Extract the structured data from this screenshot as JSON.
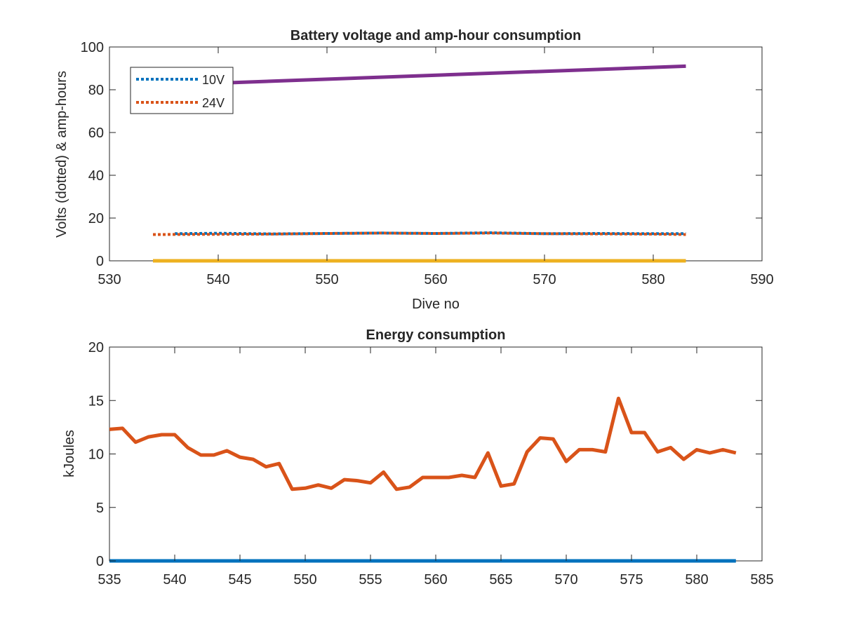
{
  "chart_data": [
    {
      "type": "line",
      "title": "Battery voltage and amp-hour consumption",
      "xlabel": "Dive no",
      "ylabel": "Volts (dotted) & amp-hours",
      "xlim": [
        530,
        590
      ],
      "ylim": [
        0,
        100
      ],
      "xticks": [
        530,
        540,
        550,
        560,
        570,
        580,
        590
      ],
      "yticks": [
        0,
        20,
        40,
        60,
        80,
        100
      ],
      "grid": false,
      "legend_position": "top-left",
      "series": [
        {
          "name": "10V",
          "style": "dotted",
          "color": "#0072BD",
          "x": [
            536,
            540,
            545,
            550,
            555,
            560,
            565,
            570,
            575,
            580,
            583
          ],
          "y": [
            12.7,
            12.9,
            12.6,
            12.8,
            13.0,
            12.8,
            13.1,
            12.7,
            12.8,
            12.7,
            12.7
          ]
        },
        {
          "name": "24V",
          "style": "dotted",
          "color": "#D95319",
          "x": [
            534,
            540,
            545,
            550,
            555,
            560,
            565,
            570,
            575,
            580,
            583
          ],
          "y": [
            12.3,
            12.4,
            12.5,
            12.8,
            13.0,
            12.8,
            13.0,
            12.7,
            12.6,
            12.5,
            12.3
          ]
        },
        {
          "style": "solid",
          "color": "#EDB120",
          "x": [
            534,
            583
          ],
          "y": [
            0,
            0
          ]
        },
        {
          "style": "solid",
          "color": "#7E2F8E",
          "x": [
            534,
            583
          ],
          "y": [
            82,
            91
          ]
        }
      ]
    },
    {
      "type": "line",
      "title": "Energy consumption",
      "xlabel": "",
      "ylabel": "kJoules",
      "xlim": [
        535,
        585
      ],
      "ylim": [
        0,
        20
      ],
      "xticks": [
        535,
        540,
        545,
        550,
        555,
        560,
        565,
        570,
        575,
        580,
        585
      ],
      "yticks": [
        0,
        5,
        10,
        15,
        20
      ],
      "grid": false,
      "series": [
        {
          "style": "solid",
          "color": "#D95319",
          "x": [
            535,
            536,
            537,
            538,
            539,
            540,
            541,
            542,
            543,
            544,
            545,
            546,
            547,
            548,
            549,
            550,
            551,
            552,
            553,
            554,
            555,
            556,
            557,
            558,
            559,
            560,
            561,
            562,
            563,
            564,
            565,
            566,
            567,
            568,
            569,
            570,
            571,
            572,
            573,
            574,
            575,
            576,
            577,
            578,
            579,
            580,
            581,
            582,
            583
          ],
          "y": [
            12.3,
            12.4,
            11.1,
            11.6,
            11.8,
            11.8,
            10.6,
            9.9,
            9.9,
            10.3,
            9.7,
            9.5,
            8.8,
            9.1,
            6.7,
            6.8,
            7.1,
            6.8,
            7.6,
            7.5,
            7.3,
            8.3,
            6.7,
            6.9,
            7.8,
            7.8,
            7.8,
            8.0,
            7.8,
            10.1,
            7.0,
            7.2,
            10.2,
            11.5,
            11.4,
            9.3,
            10.4,
            10.4,
            10.2,
            15.2,
            12.0,
            12.0,
            10.2,
            10.6,
            9.5,
            10.4,
            10.1,
            10.4,
            10.1
          ]
        },
        {
          "style": "solid",
          "color": "#0072BD",
          "x": [
            535,
            583
          ],
          "y": [
            0,
            0
          ]
        }
      ]
    }
  ]
}
